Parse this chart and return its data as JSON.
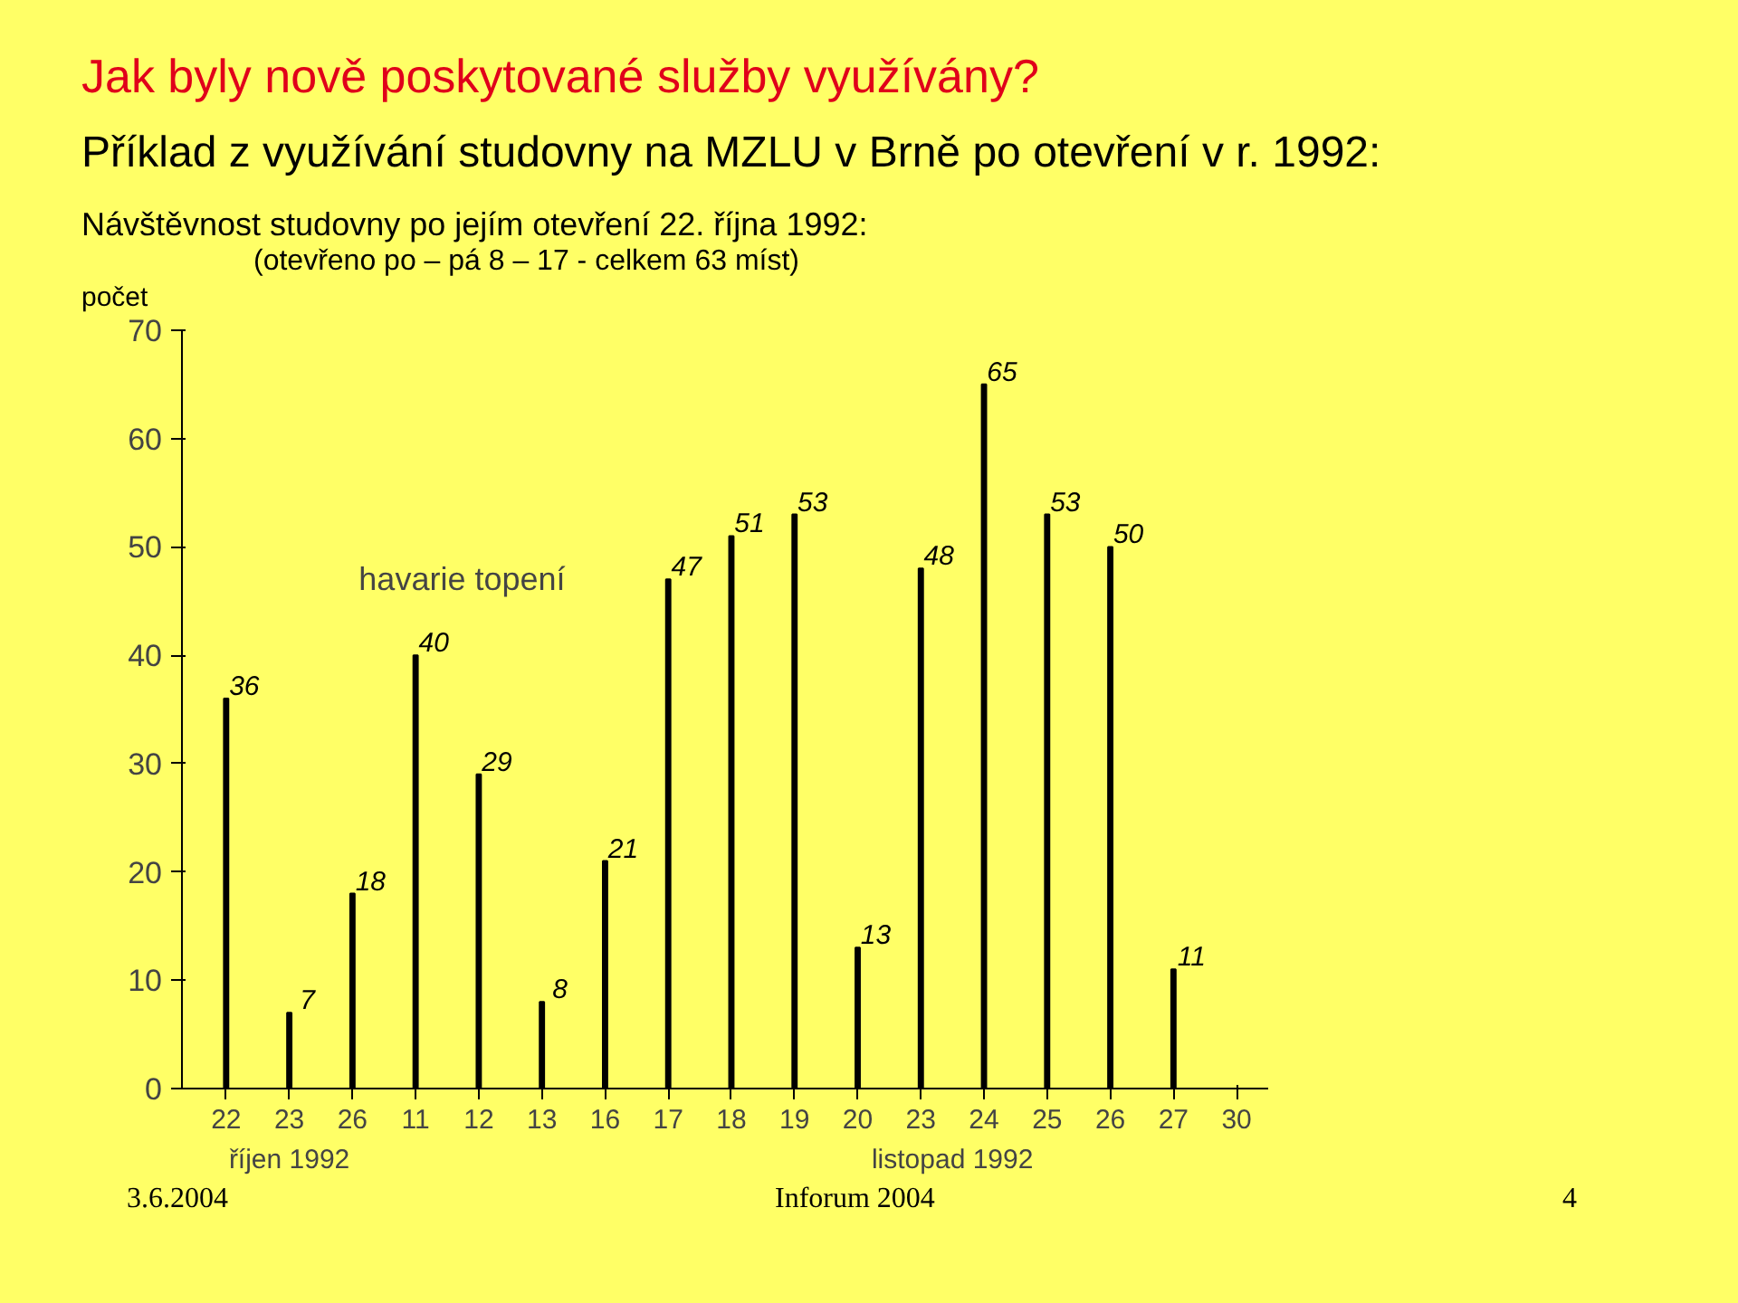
{
  "chart_data": {
    "type": "bar",
    "title": "Jak byly nově poskytované služby využívány?",
    "subtitle": "Příklad z využívání studovny na MZLU v Brně po otevření v r. 1992:",
    "ylabel": "počet",
    "categories": [
      "22",
      "23",
      "26",
      "11",
      "12",
      "13",
      "16",
      "17",
      "18",
      "19",
      "20",
      "23",
      "24",
      "25",
      "26",
      "27",
      "30"
    ],
    "values": [
      36,
      7,
      18,
      40,
      29,
      8,
      21,
      47,
      51,
      53,
      13,
      48,
      65,
      53,
      50,
      11,
      null
    ],
    "color": "#000000",
    "data_labels": true,
    "ylim": [
      0,
      70
    ],
    "yticks": [
      0,
      10,
      20,
      30,
      40,
      50,
      60,
      70
    ],
    "grid": false,
    "annotations": [
      "Návštěvnost studovny po jejím otevření 22. října 1992:",
      "(otevřeno po – pá 8 – 17 - celkem 63 míst)",
      "havarie topení",
      "říjen 1992",
      "listopad 1992",
      "3.6.2004",
      "Inforum 2004",
      "4"
    ]
  }
}
